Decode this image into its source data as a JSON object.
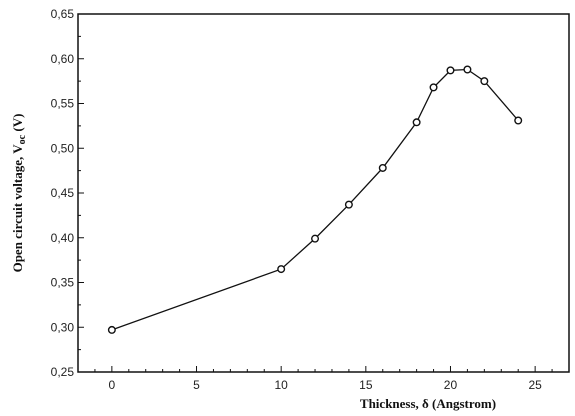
{
  "chart_data": {
    "type": "line",
    "title": "",
    "xlabel": "Thickness, δ (Angstrom)",
    "ylabel": "Open circuit voltage, V",
    "ylabel_subscript": "oc",
    "ylabel_suffix": " (V)",
    "xlim": [
      -2,
      27
    ],
    "ylim": [
      0.25,
      0.65
    ],
    "x_ticks": [
      0,
      5,
      10,
      15,
      20,
      25
    ],
    "x_tick_labels": [
      "0",
      "5",
      "10",
      "15",
      "20",
      "25"
    ],
    "y_ticks": [
      0.25,
      0.3,
      0.35,
      0.4,
      0.45,
      0.5,
      0.55,
      0.6,
      0.65
    ],
    "y_tick_labels": [
      "0,25",
      "0,30",
      "0,35",
      "0,40",
      "0,45",
      "0,50",
      "0,55",
      "0,60",
      "0,65"
    ],
    "grid": false,
    "series": [
      {
        "x": [
          0,
          10,
          12,
          14,
          16,
          18,
          19,
          20,
          21,
          22,
          24
        ],
        "y": [
          0.297,
          0.365,
          0.399,
          0.437,
          0.478,
          0.529,
          0.568,
          0.587,
          0.588,
          0.575,
          0.531
        ],
        "marker": "open-circle",
        "color": "#111111"
      }
    ]
  }
}
